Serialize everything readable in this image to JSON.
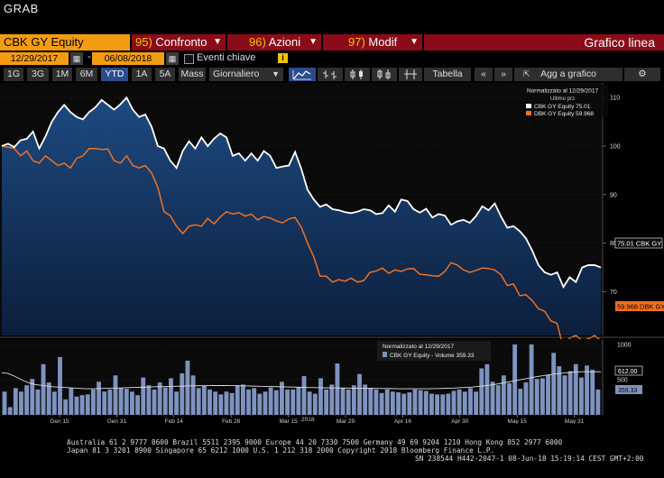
{
  "app_title": "GRAB",
  "toolbar": {
    "ticker": "CBK GY Equity",
    "confronto": {
      "num": "95)",
      "label": "Confronto"
    },
    "azioni": {
      "num": "96)",
      "label": "Azioni"
    },
    "modif": {
      "num": "97)",
      "label": "Modif"
    },
    "view_title": "Grafico linea"
  },
  "dates": {
    "start": "12/29/2017",
    "dash": "-",
    "end": "06/08/2018",
    "key_events": "Eventi chiave"
  },
  "periods": [
    {
      "label": "1G",
      "selected": false
    },
    {
      "label": "3G",
      "selected": false
    },
    {
      "label": "1M",
      "selected": false
    },
    {
      "label": "6M",
      "selected": false
    },
    {
      "label": "YTD",
      "selected": true
    },
    {
      "label": "1A",
      "selected": false
    },
    {
      "label": "5A",
      "selected": false
    },
    {
      "label": "Mass",
      "selected": false
    }
  ],
  "frequency": "Giornaliero",
  "tabella": "Tabella",
  "add_chart": "Agg a grafico",
  "colors": {
    "accent_orange": "#f39c12",
    "bar_red": "#8b0c18",
    "cbk_line": "#ffffff",
    "dbk_line": "#f07020",
    "volume_bar": "#7f93c0",
    "area_fill": "#163a6a"
  },
  "chart_data": [
    {
      "type": "line",
      "legend": {
        "title": "Normalizzato al 12/29/2017",
        "subtitle": "Ultimo prz",
        "entries": [
          "CBK GY Equity  75.01",
          "DBK GY Equity  59.968"
        ]
      },
      "x_ticks": [
        "Gen 15",
        "Gen 31",
        "Feb 14",
        "Feb 28",
        "Mar 15",
        "Mar 29",
        "Apr 16",
        "Apr 30",
        "May 15",
        "May 31"
      ],
      "year_label": "2018",
      "y_ticks": [
        70,
        80,
        90,
        100,
        110
      ],
      "ylim": [
        61,
        113
      ],
      "last_labels": {
        "cbk": "75.01 CBK GY",
        "dbk": "59.968 DBK GY"
      },
      "series": [
        {
          "name": "CBK GY Equity",
          "values": [
            100,
            100.5,
            99.8,
            101.2,
            101.5,
            103,
            99.5,
            102,
            105,
            107,
            108.5,
            107,
            106,
            105.5,
            107,
            108,
            109.5,
            108.5,
            107.5,
            108.6,
            110,
            107.5,
            106,
            106.5,
            104,
            100,
            99.5,
            97,
            95.5,
            99,
            101,
            99.5,
            101.8,
            100,
            101.5,
            102.6,
            101.8,
            98,
            98.5,
            97,
            98.5,
            97,
            99,
            98,
            95.5,
            95.8,
            96,
            98.8,
            95.3,
            91,
            89,
            87.5,
            88,
            87,
            86.8,
            86.4,
            86.2,
            86.5,
            87,
            86.8,
            86,
            86.2,
            87.8,
            86.5,
            89,
            88.7,
            87,
            86.3,
            87.1,
            85.3,
            86,
            85.7,
            83.8,
            84.5,
            84.8,
            84.2,
            85.6,
            87.6,
            86.8,
            88.2,
            85.5,
            83.2,
            83.5,
            82.5,
            81,
            78.5,
            75.5,
            74,
            73.5,
            74,
            71,
            73,
            72,
            75,
            75.5,
            75.5,
            75.01
          ]
        },
        {
          "name": "DBK GY Equity",
          "values": [
            100,
            99.8,
            99.5,
            98,
            99,
            97,
            96.5,
            98,
            97,
            96,
            96.5,
            95.5,
            97.5,
            98,
            99.5,
            99.5,
            99.3,
            99.4,
            97,
            96.5,
            98,
            96,
            95.5,
            96,
            94.5,
            91.5,
            86.5,
            85.7,
            83.5,
            82,
            83.5,
            83.8,
            83.5,
            85.1,
            84,
            85.4,
            86.5,
            86,
            86.3,
            85.6,
            86,
            84.8,
            85.5,
            85.2,
            84.6,
            84.2,
            85,
            85.3,
            83.3,
            80,
            77.2,
            73.2,
            73.2,
            72,
            72.5,
            72.2,
            72.8,
            72,
            72.3,
            74,
            74.3,
            74.9,
            73.8,
            74.5,
            74.2,
            74.7,
            74.8,
            73.6,
            73.5,
            73.3,
            73.2,
            74.2,
            76,
            75.5,
            74.5,
            74,
            74.4,
            74.9,
            74.8,
            74.5,
            73.5,
            71.3,
            71.6,
            69.2,
            69.4,
            68.2,
            66.5,
            66,
            64,
            63.5,
            58.3,
            60.5,
            61,
            60,
            60.3,
            61,
            59.968
          ]
        }
      ]
    },
    {
      "type": "bar",
      "legend": {
        "title": "Normalizzato al 12/29/2017",
        "entries": [
          "CBK GY Equity - Volume 359.33"
        ]
      },
      "y_ticks": [
        500,
        1000
      ],
      "ylim": [
        0,
        1050
      ],
      "last_labels": {
        "avg": "612.00",
        "volume": "359.33"
      },
      "series": [
        {
          "name": "CBK GY Equity - Volume",
          "values": [
            330,
            110,
            380,
            330,
            420,
            510,
            360,
            720,
            460,
            330,
            820,
            220,
            380,
            260,
            280,
            290,
            360,
            470,
            330,
            360,
            560,
            380,
            370,
            330,
            280,
            530,
            420,
            360,
            460,
            390,
            520,
            330,
            590,
            770,
            560,
            380,
            410,
            360,
            330,
            290,
            330,
            310,
            420,
            430,
            360,
            380,
            300,
            330,
            390,
            350,
            470,
            360,
            360,
            390,
            550,
            330,
            300,
            520,
            360,
            430,
            730,
            380,
            360,
            420,
            580,
            430,
            380,
            360,
            310,
            360,
            330,
            320,
            300,
            320,
            360,
            350,
            340,
            300,
            290,
            290,
            300,
            340,
            360,
            330,
            380,
            330,
            660,
            720,
            470,
            420,
            560,
            450,
            1000,
            370,
            460,
            1000,
            510,
            520,
            570,
            880,
            690,
            560,
            620,
            720,
            530,
            700,
            640,
            360
          ]
        },
        {
          "name": "Moving average",
          "values": [
            600,
            590,
            560,
            520,
            480,
            450,
            430,
            420,
            410,
            400,
            395,
            390,
            385,
            380,
            375,
            370,
            370,
            372,
            375,
            378,
            380,
            382,
            385,
            388,
            390,
            392,
            395,
            398,
            400,
            402,
            404,
            406,
            408,
            410,
            412,
            413,
            414,
            415,
            416,
            416,
            416,
            415,
            414,
            412,
            410,
            408,
            406,
            404,
            402,
            400,
            398,
            396,
            394,
            392,
            390,
            388,
            386,
            385,
            384,
            383,
            382,
            381,
            380,
            379,
            378,
            377,
            376,
            375,
            374,
            373,
            372,
            371,
            370,
            370,
            370,
            370,
            371,
            372,
            374,
            376,
            379,
            382,
            386,
            390,
            395,
            402,
            410,
            420,
            432,
            445,
            460,
            475,
            490,
            505,
            520,
            535,
            548,
            560,
            572,
            582,
            592,
            600,
            606,
            610,
            612,
            612,
            612,
            612
          ]
        }
      ]
    }
  ],
  "footer": {
    "line1": "Australia 61 2 9777 8600 Brazil 5511 2395 9000 Europe 44 20 7330 7500 Germany 49 69 9204 1210 Hong Kong 852 2977 6000",
    "line2": "Japan 81 3 3201 8900          Singapore 65 6212 1000        U.S. 1 212 318 2000             Copyright 2018 Bloomberg Finance L.P.",
    "line3": "SN 238544 H442-2047-1 08-Jun-18 15:19:14 CEST GMT+2:00"
  }
}
